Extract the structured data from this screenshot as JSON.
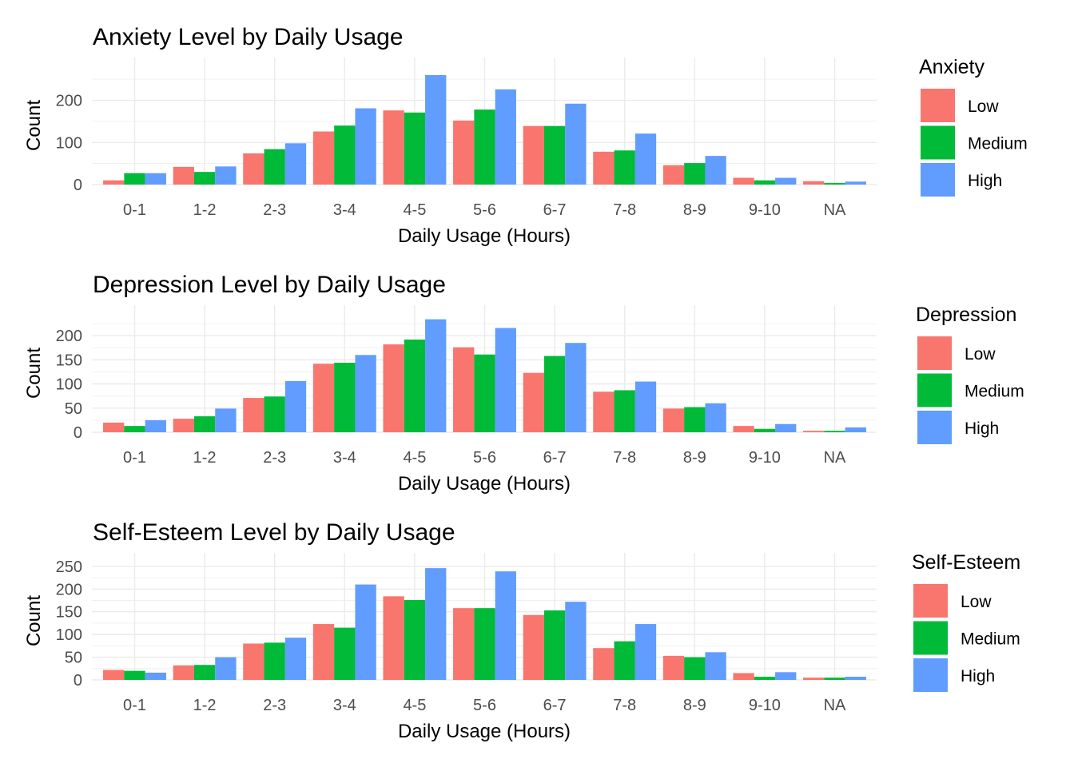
{
  "chart_data": [
    {
      "type": "bar",
      "title": "Anxiety Level by Daily Usage",
      "xlabel": "Daily Usage (Hours)",
      "ylabel": "Count",
      "categories": [
        "0-1",
        "1-2",
        "2-3",
        "3-4",
        "4-5",
        "5-6",
        "6-7",
        "7-8",
        "8-9",
        "9-10",
        "NA"
      ],
      "series": [
        {
          "name": "Low",
          "color": "#F8766D",
          "values": [
            10,
            42,
            74,
            126,
            176,
            152,
            139,
            78,
            46,
            16,
            8
          ]
        },
        {
          "name": "Medium",
          "color": "#00BA38",
          "values": [
            27,
            30,
            84,
            140,
            171,
            178,
            139,
            81,
            51,
            10,
            4
          ]
        },
        {
          "name": "High",
          "color": "#619CFF",
          "values": [
            27,
            43,
            98,
            181,
            260,
            226,
            192,
            121,
            68,
            16,
            7
          ]
        }
      ],
      "legend_title": "Anxiety",
      "yticks": [
        0,
        100,
        200
      ],
      "ylim": [
        0,
        275
      ],
      "grid": true,
      "legend_position": "right"
    },
    {
      "type": "bar",
      "title": "Depression Level by Daily Usage",
      "xlabel": "Daily Usage (Hours)",
      "ylabel": "Count",
      "categories": [
        "0-1",
        "1-2",
        "2-3",
        "3-4",
        "4-5",
        "5-6",
        "6-7",
        "7-8",
        "8-9",
        "9-10",
        "NA"
      ],
      "series": [
        {
          "name": "Low",
          "color": "#F8766D",
          "values": [
            20,
            28,
            71,
            142,
            182,
            176,
            123,
            84,
            49,
            13,
            3
          ]
        },
        {
          "name": "Medium",
          "color": "#00BA38",
          "values": [
            13,
            33,
            74,
            144,
            192,
            161,
            158,
            87,
            52,
            7,
            3
          ]
        },
        {
          "name": "High",
          "color": "#619CFF",
          "values": [
            25,
            49,
            106,
            160,
            234,
            216,
            185,
            105,
            60,
            17,
            10
          ]
        }
      ],
      "legend_title": "Depression",
      "yticks": [
        0,
        50,
        100,
        150,
        200
      ],
      "ylim": [
        0,
        240
      ],
      "grid": true,
      "legend_position": "right"
    },
    {
      "type": "bar",
      "title": "Self-Esteem Level by Daily Usage",
      "xlabel": "Daily Usage (Hours)",
      "ylabel": "Count",
      "categories": [
        "0-1",
        "1-2",
        "2-3",
        "3-4",
        "4-5",
        "5-6",
        "6-7",
        "7-8",
        "8-9",
        "9-10",
        "NA"
      ],
      "series": [
        {
          "name": "Low",
          "color": "#F8766D",
          "values": [
            22,
            32,
            80,
            123,
            184,
            158,
            143,
            70,
            53,
            15,
            5
          ]
        },
        {
          "name": "Medium",
          "color": "#00BA38",
          "values": [
            20,
            33,
            82,
            115,
            176,
            158,
            153,
            85,
            50,
            7,
            5
          ]
        },
        {
          "name": "High",
          "color": "#619CFF",
          "values": [
            16,
            50,
            93,
            210,
            246,
            239,
            172,
            123,
            61,
            17,
            7
          ]
        }
      ],
      "legend_title": "Self-Esteem",
      "yticks": [
        0,
        50,
        100,
        150,
        200,
        250
      ],
      "ylim": [
        0,
        255
      ],
      "grid": true,
      "legend_position": "right"
    }
  ]
}
